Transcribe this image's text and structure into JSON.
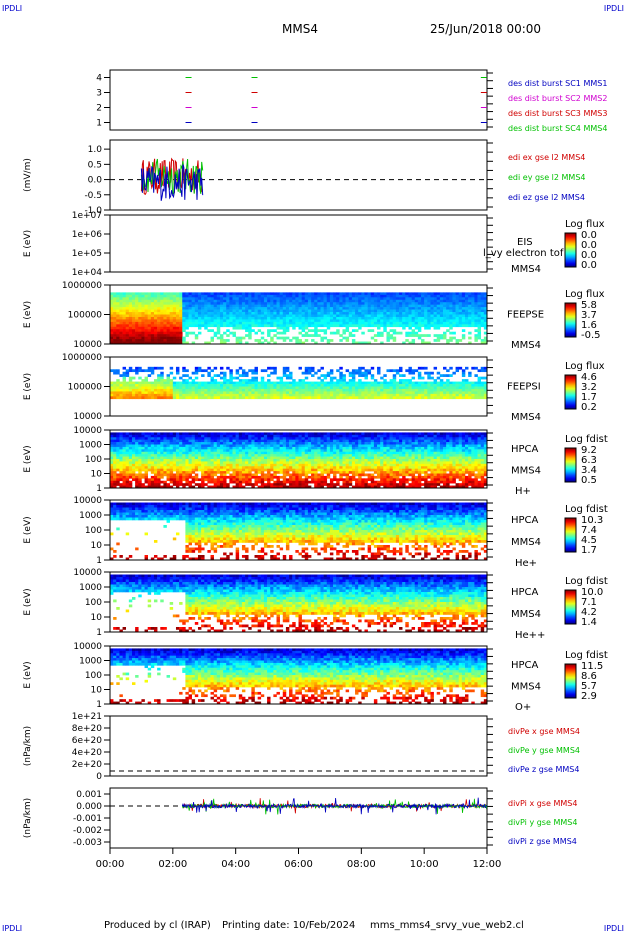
{
  "corners": {
    "top_left": "IPDLI",
    "top_right": "IPDLI",
    "bottom_left": "IPDLI",
    "bottom_right": "IPDLI"
  },
  "header": {
    "spacecraft": "MMS4",
    "datetime": "25/Jun/2018 00:00"
  },
  "footer": {
    "produced_by": "Produced by cl (IRAP)",
    "printing_date": "Printing date: 10/Feb/2024",
    "script_name": "mms_mms4_srvy_vue_web2.cl"
  },
  "colors": {
    "red": "#d00000",
    "green": "#00c000",
    "blue": "#0000c0",
    "magenta": "#d000d0"
  },
  "chart_data": [
    {
      "type": "scatter",
      "ylabel": "",
      "ylim": [
        0.5,
        4.5
      ],
      "ticks": [
        "1",
        "2",
        "3",
        "4"
      ],
      "series": [
        {
          "name": "des dist burst SC1 MMS1",
          "color": "#0000c0"
        },
        {
          "name": "des dist burst SC2 MMS2",
          "color": "#d000d0"
        },
        {
          "name": "des dist burst SC3 MMS3",
          "color": "#d00000"
        },
        {
          "name": "des dist burst SC4 MMS4",
          "color": "#00c000"
        }
      ],
      "burst_times_hr": [
        2.5,
        4.6,
        11.9
      ]
    },
    {
      "type": "line",
      "ylabel": "(mV/m)",
      "ylim": [
        -1.0,
        1.3
      ],
      "ticks": [
        "1.0",
        "0.5",
        "0.0",
        "-0.5",
        "-1.0"
      ],
      "tick_values": [
        1.0,
        0.5,
        0.0,
        -0.5,
        -1.0
      ],
      "series": [
        {
          "name": "edi ex gse l2 MMS4",
          "color": "#d00000"
        },
        {
          "name": "edi ey gse l2 MMS4",
          "color": "#00c000"
        },
        {
          "name": "edi ez gse l2 MMS4",
          "color": "#0000c0"
        }
      ],
      "data_range_hr": [
        1.0,
        2.95
      ]
    },
    {
      "type": "heatmap",
      "ylabel": "E (eV)",
      "scale": "log",
      "ticks": [
        "1e+07",
        "1e+06",
        "1e+05",
        "1e+04"
      ],
      "labels": [
        "EIS",
        "MMS4"
      ],
      "overlay_text": "l_vy electron tof",
      "colorbar": {
        "title": "Log flux",
        "ticks": [
          "0.0",
          "0.0",
          "0.0",
          "0.0"
        ]
      }
    },
    {
      "type": "heatmap",
      "ylabel": "E (eV)",
      "scale": "log",
      "ticks": [
        "1000000",
        "100000",
        "10000"
      ],
      "labels": [
        "FEEPSE",
        "MMS4"
      ],
      "colorbar": {
        "title": "Log flux",
        "ticks": [
          "5.8",
          "3.7",
          "1.6",
          "-0.5"
        ]
      }
    },
    {
      "type": "heatmap",
      "ylabel": "E (eV)",
      "scale": "log",
      "ticks": [
        "1000000",
        "100000",
        "10000"
      ],
      "labels": [
        "FEEPSI",
        "MMS4"
      ],
      "colorbar": {
        "title": "Log flux",
        "ticks": [
          "4.6",
          "3.2",
          "1.7",
          "0.2"
        ]
      }
    },
    {
      "type": "heatmap",
      "ylabel": "E (eV)",
      "scale": "log",
      "ticks": [
        "10000",
        "1000",
        "100",
        "10",
        "1"
      ],
      "labels": [
        "HPCA",
        "MMS4",
        "H+"
      ],
      "colorbar": {
        "title": "Log fdist",
        "ticks": [
          "9.2",
          "6.3",
          "3.4",
          "0.5"
        ]
      }
    },
    {
      "type": "heatmap",
      "ylabel": "E (eV)",
      "scale": "log",
      "ticks": [
        "10000",
        "1000",
        "100",
        "10",
        "1"
      ],
      "labels": [
        "HPCA",
        "MMS4",
        "He+"
      ],
      "colorbar": {
        "title": "Log fdist",
        "ticks": [
          "10.3",
          "7.4",
          "4.5",
          "1.7"
        ]
      }
    },
    {
      "type": "heatmap",
      "ylabel": "E (eV)",
      "scale": "log",
      "ticks": [
        "10000",
        "1000",
        "100",
        "10",
        "1"
      ],
      "labels": [
        "HPCA",
        "MMS4",
        "He++"
      ],
      "colorbar": {
        "title": "Log fdist",
        "ticks": [
          "10.0",
          "7.1",
          "4.2",
          "1.4"
        ]
      }
    },
    {
      "type": "heatmap",
      "ylabel": "E (eV)",
      "scale": "log",
      "ticks": [
        "10000",
        "1000",
        "100",
        "10",
        "1"
      ],
      "labels": [
        "HPCA",
        "MMS4",
        "O+"
      ],
      "colorbar": {
        "title": "Log fdist",
        "ticks": [
          "11.5",
          "8.6",
          "5.7",
          "2.9"
        ]
      }
    },
    {
      "type": "line",
      "ylabel": "(nPa/km)",
      "ticks": [
        "1e+21",
        "8e+20",
        "6e+20",
        "4e+20",
        "2e+20",
        "0"
      ],
      "series": [
        {
          "name": "divPe x gse MMS4",
          "color": "#d00000"
        },
        {
          "name": "divPe y gse MMS4",
          "color": "#00c000"
        },
        {
          "name": "divPe z gse MMS4",
          "color": "#0000c0"
        }
      ]
    },
    {
      "type": "line",
      "ylabel": "(nPa/km)",
      "ylim": [
        -0.0035,
        0.0015
      ],
      "ticks": [
        "0.001",
        "0.000",
        "-0.001",
        "-0.002",
        "-0.003"
      ],
      "tick_values": [
        0.001,
        0.0,
        -0.001,
        -0.002,
        -0.003
      ],
      "series": [
        {
          "name": "divPi x gse MMS4",
          "color": "#d00000"
        },
        {
          "name": "divPi y gse MMS4",
          "color": "#00c000"
        },
        {
          "name": "divPi z gse MMS4",
          "color": "#0000c0"
        }
      ],
      "data_range_hr": [
        2.3,
        12.0
      ]
    }
  ],
  "time_axis": {
    "ticks": [
      "00:00",
      "02:00",
      "04:00",
      "06:00",
      "08:00",
      "10:00",
      "12:00"
    ],
    "range_hr": [
      0,
      12
    ]
  }
}
